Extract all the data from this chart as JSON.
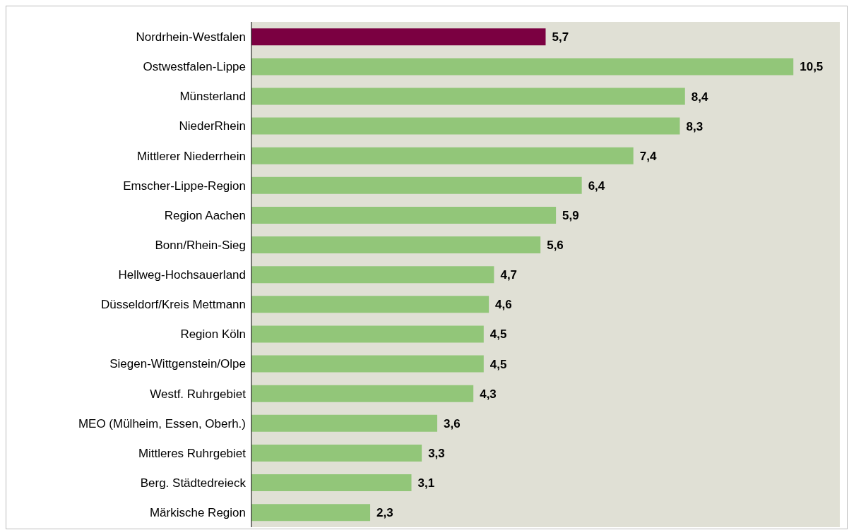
{
  "chart_data": {
    "type": "bar",
    "orientation": "horizontal",
    "categories": [
      "Nordrhein-Westfalen",
      "Ostwestfalen-Lippe",
      "Münsterland",
      "NiederRhein",
      "Mittlerer Niederrhein",
      "Emscher-Lippe-Region",
      "Region Aachen",
      "Bonn/Rhein-Sieg",
      "Hellweg-Hochsauerland",
      "Düsseldorf/Kreis Mettmann",
      "Region Köln",
      "Siegen-Wittgenstein/Olpe",
      "Westf. Ruhrgebiet",
      "MEO (Mülheim, Essen, Oberh.)",
      "Mittleres Ruhrgebiet",
      "Berg. Städtedreieck",
      "Märkische Region"
    ],
    "values": [
      5.7,
      10.5,
      8.4,
      8.3,
      7.4,
      6.4,
      5.9,
      5.6,
      4.7,
      4.6,
      4.5,
      4.5,
      4.3,
      3.6,
      3.3,
      3.1,
      2.3
    ],
    "value_labels": [
      "5,7",
      "10,5",
      "8,4",
      "8,3",
      "7,4",
      "6,4",
      "5,9",
      "5,6",
      "4,7",
      "4,6",
      "4,5",
      "4,5",
      "4,3",
      "3,6",
      "3,3",
      "3,1",
      "2,3"
    ],
    "colors": [
      "#7b0041",
      "#92c679",
      "#92c679",
      "#92c679",
      "#92c679",
      "#92c679",
      "#92c679",
      "#92c679",
      "#92c679",
      "#92c679",
      "#92c679",
      "#92c679",
      "#92c679",
      "#92c679",
      "#92c679",
      "#92c679",
      "#92c679"
    ],
    "xlim": [
      0,
      11.4
    ],
    "tick_labels": "y"
  }
}
